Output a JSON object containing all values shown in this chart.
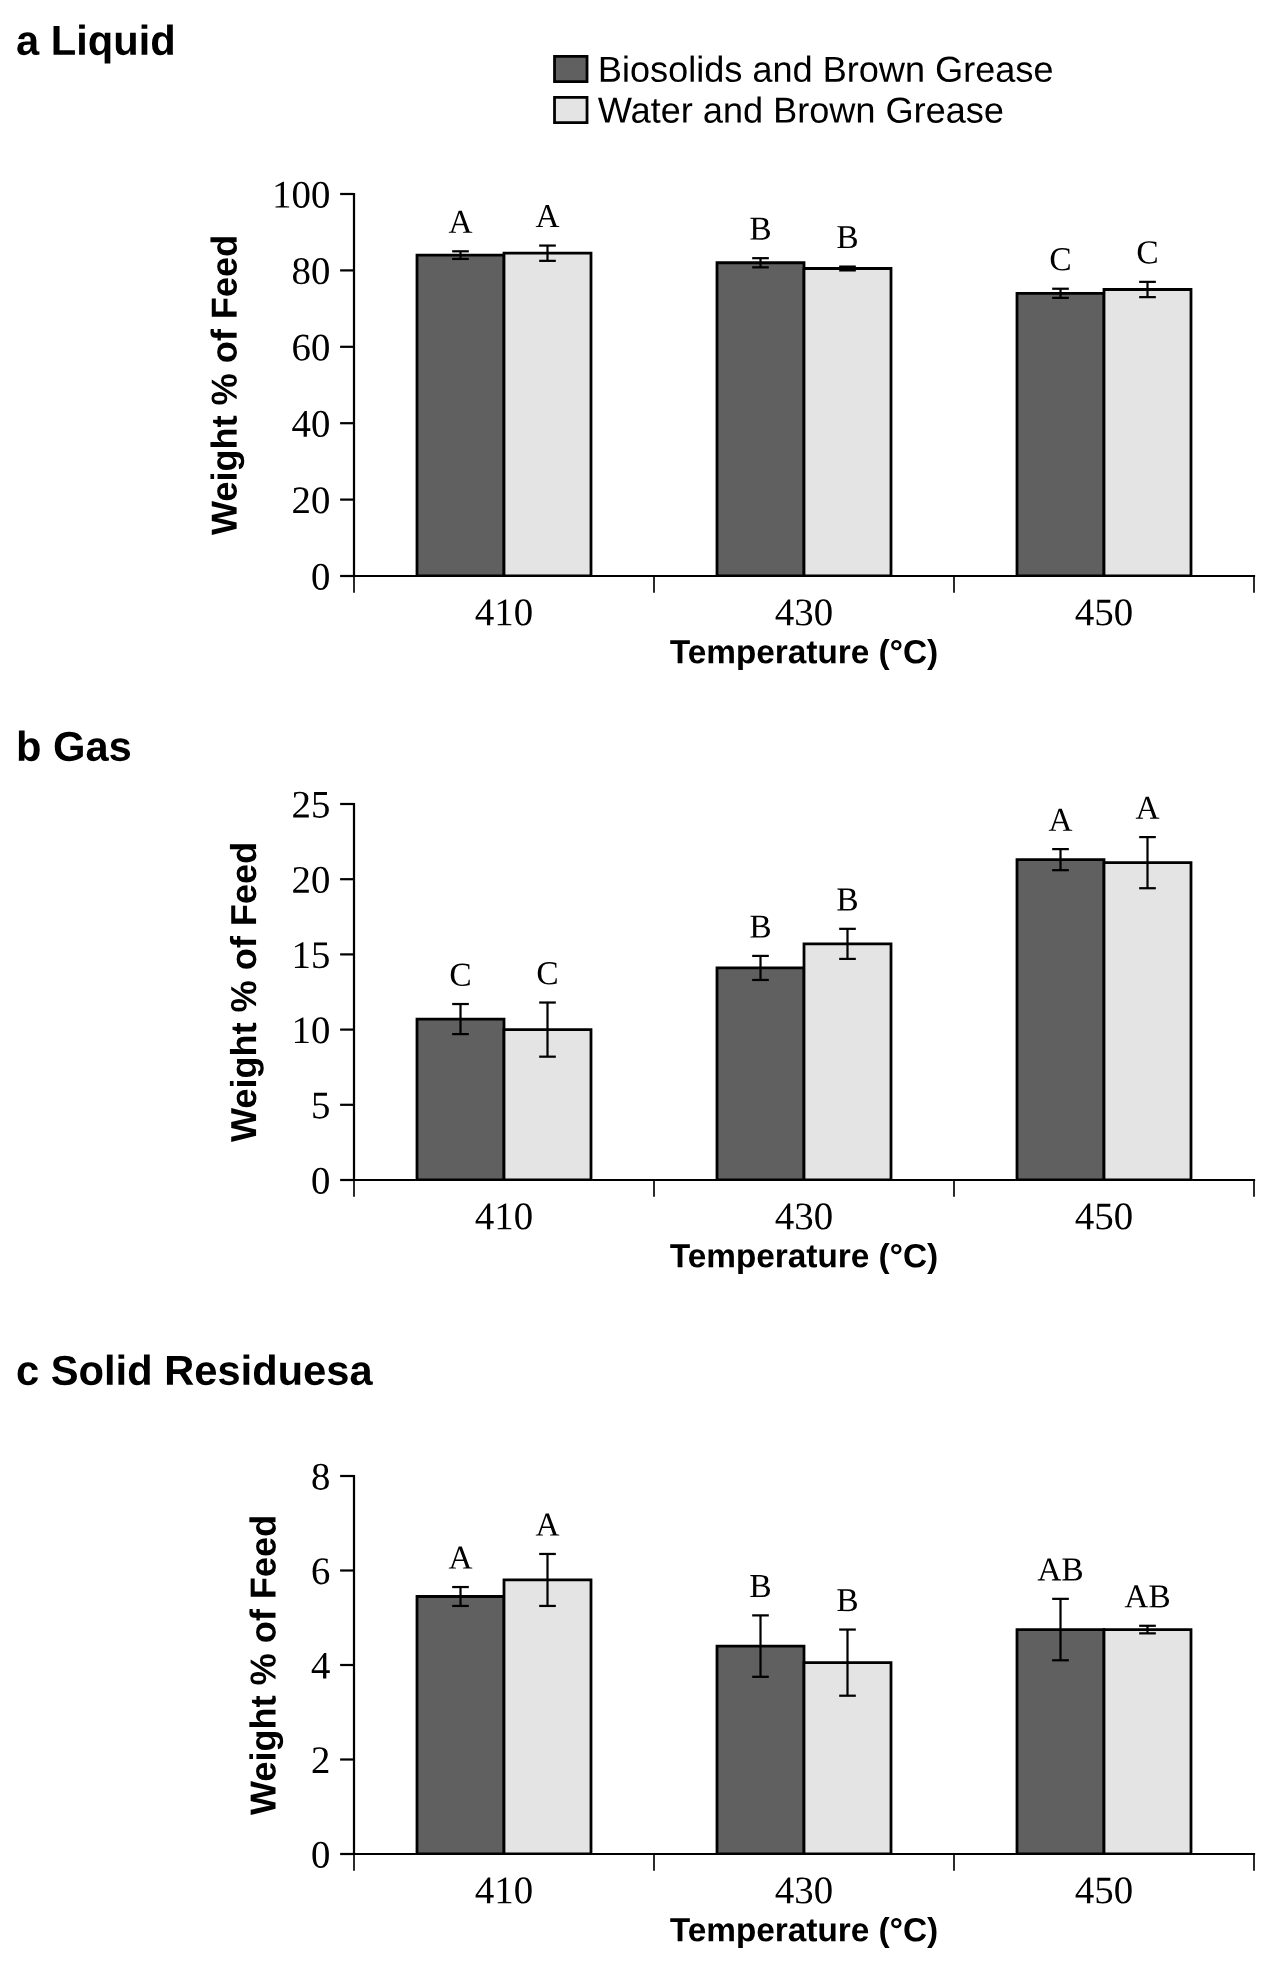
{
  "chart_data": [
    {
      "type": "bar",
      "title": "a Liquid",
      "xlabel": "Temperature (°C)",
      "ylabel": "Weight % of Feed",
      "categories": [
        "410",
        "430",
        "450"
      ],
      "ylim": [
        0,
        100
      ],
      "yticks": [
        0,
        20,
        40,
        60,
        80,
        100
      ],
      "grid": false,
      "legend": "top",
      "series": [
        {
          "name": "Biosolids and Brown Grease",
          "color": "#606060",
          "values": [
            84,
            82,
            74
          ],
          "errors": [
            1,
            1.2,
            1.2
          ],
          "value_labels": [
            "A",
            "B",
            "C"
          ]
        },
        {
          "name": "Water and Brown Grease",
          "color": "#e4e4e4",
          "values": [
            84.5,
            80.5,
            75
          ],
          "errors": [
            2,
            0.5,
            2
          ],
          "value_labels": [
            "A",
            "B",
            "C"
          ]
        }
      ]
    },
    {
      "type": "bar",
      "title": "b Gas",
      "xlabel": "Temperature (°C)",
      "ylabel": "Weight % of Feed",
      "categories": [
        "410",
        "430",
        "450"
      ],
      "ylim": [
        0,
        25
      ],
      "yticks": [
        0,
        5,
        10,
        15,
        20,
        25
      ],
      "grid": false,
      "series": [
        {
          "color": "#606060",
          "values": [
            10.7,
            14.1,
            21.3
          ],
          "errors": [
            1,
            0.8,
            0.7
          ],
          "value_labels": [
            "C",
            "B",
            "A"
          ]
        },
        {
          "color": "#e4e4e4",
          "values": [
            10,
            15.7,
            21.1
          ],
          "errors": [
            1.8,
            1,
            1.7
          ],
          "value_labels": [
            "C",
            "B",
            "A"
          ]
        }
      ]
    },
    {
      "type": "bar",
      "title": "c Solid Residuesa",
      "xlabel": "Temperature (°C)",
      "ylabel": "Weight % of Feed",
      "categories": [
        "410",
        "430",
        "450"
      ],
      "ylim": [
        0,
        8
      ],
      "yticks": [
        0,
        2,
        4,
        6,
        8
      ],
      "grid": false,
      "series": [
        {
          "color": "#606060",
          "values": [
            5.45,
            4.4,
            4.75
          ],
          "errors": [
            0.2,
            0.65,
            0.65
          ],
          "value_labels": [
            "A",
            "B",
            "AB"
          ]
        },
        {
          "color": "#e4e4e4",
          "values": [
            5.8,
            4.05,
            4.75
          ],
          "errors": [
            0.55,
            0.7,
            0.08
          ],
          "value_labels": [
            "A",
            "B",
            "AB"
          ]
        }
      ]
    }
  ]
}
